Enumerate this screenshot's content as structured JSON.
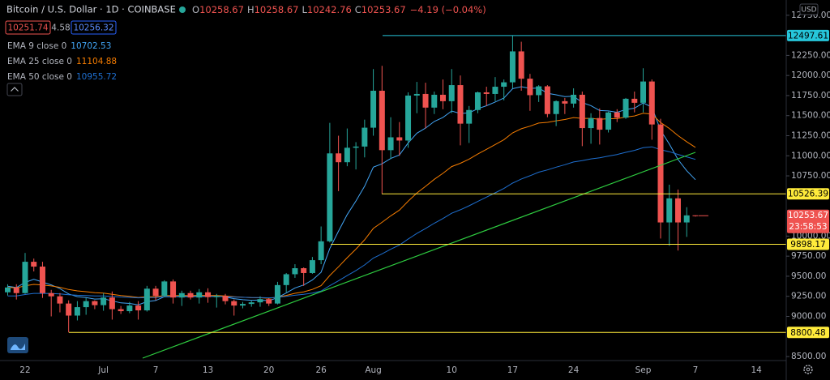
{
  "header": {
    "ohlc_labels": [
      "O",
      "H",
      "L",
      "C"
    ],
    "change": "−4.19 (−0.04%)",
    "bid": 10251.74,
    "spread": 4.58,
    "ask": 10256.32,
    "currency": "USD",
    "countdown": "23:58:53"
  },
  "chart_data": {
    "type": "candlestick",
    "title": "Bitcoin / U.S. Dollar · 1D · COINBASE",
    "categories": [
      null,
      null,
      "22",
      null,
      null,
      null,
      null,
      null,
      null,
      null,
      null,
      "Jul",
      null,
      null,
      null,
      null,
      null,
      "7",
      null,
      null,
      null,
      null,
      null,
      "13",
      null,
      null,
      null,
      null,
      null,
      null,
      "20",
      null,
      null,
      null,
      null,
      null,
      "26",
      null,
      null,
      null,
      null,
      null,
      "Aug",
      null,
      null,
      null,
      null,
      null,
      null,
      null,
      null,
      "10",
      null,
      null,
      null,
      null,
      null,
      null,
      "17",
      null,
      null,
      null,
      null,
      null,
      null,
      "24",
      null,
      null,
      null,
      null,
      null,
      null,
      null,
      "Sep",
      null,
      null,
      null,
      null,
      null,
      "7",
      null,
      null,
      null,
      null,
      null,
      null,
      "14"
    ],
    "open": [
      9300,
      9360,
      9290,
      9680,
      9620,
      9290,
      9250,
      9160,
      9010,
      9115,
      9190,
      9140,
      9235,
      9090,
      9065,
      9135,
      9075,
      9345,
      9255,
      9435,
      9235,
      9290,
      9235,
      9300,
      9240,
      9255,
      9190,
      9135,
      9155,
      9175,
      9215,
      9160,
      9390,
      9525,
      9600,
      9540,
      9700,
      9935,
      11030,
      10920,
      11100,
      11115,
      11350,
      11810,
      11070,
      11230,
      11190,
      11750,
      11770,
      11600,
      11760,
      11680,
      11880,
      11400,
      11570,
      11790,
      11770,
      11860,
      11915,
      12300,
      11960,
      11755,
      11865,
      11520,
      11680,
      11650,
      11760,
      11345,
      11470,
      11325,
      11540,
      11475,
      11710,
      11660,
      11925,
      11390,
      10170,
      10470,
      10170,
      10258.67,
      null,
      null,
      null,
      null,
      null,
      null,
      null
    ],
    "high": [
      9400,
      9400,
      9790,
      9720,
      9680,
      9330,
      9290,
      9200,
      9190,
      9230,
      9200,
      9290,
      9310,
      9130,
      9180,
      9190,
      9380,
      9380,
      9450,
      9460,
      9320,
      9320,
      9340,
      9350,
      9280,
      9280,
      9210,
      9180,
      9200,
      9250,
      9225,
      9430,
      9540,
      9650,
      9610,
      9740,
      10120,
      11410,
      11250,
      11340,
      11170,
      11450,
      12080,
      12120,
      11480,
      11420,
      11790,
      11920,
      11910,
      11800,
      11950,
      12080,
      12000,
      11620,
      11800,
      11860,
      11980,
      11950,
      12497.61,
      12420,
      12020,
      11880,
      11880,
      11690,
      11720,
      11840,
      11800,
      11530,
      11590,
      11550,
      11580,
      11720,
      11800,
      12090,
      11950,
      11460,
      10640,
      10580,
      10360,
      10258.67,
      null,
      null,
      null,
      null,
      null,
      null,
      null
    ],
    "low": [
      9260,
      9210,
      9280,
      9560,
      9230,
      9000,
      9050,
      8800.48,
      8950,
      9020,
      9090,
      9070,
      8960,
      9030,
      9040,
      8960,
      9060,
      9200,
      9240,
      9160,
      9130,
      9210,
      9160,
      9170,
      9110,
      9150,
      9010,
      9100,
      9120,
      9120,
      9130,
      9150,
      9300,
      9480,
      9380,
      9530,
      9650,
      9920,
      10560,
      10870,
      10830,
      10980,
      11250,
      10526.39,
      10960,
      11000,
      11100,
      11530,
      11340,
      11520,
      11580,
      11530,
      11130,
      11160,
      11530,
      11620,
      11680,
      11690,
      11840,
      11810,
      11560,
      11670,
      11480,
      11370,
      11520,
      11600,
      11120,
      11150,
      11140,
      11290,
      11420,
      11460,
      11540,
      11540,
      11200,
      9970,
      9880,
      9820,
      9990,
      10242.76,
      null,
      null,
      null,
      null,
      null,
      null,
      null
    ],
    "close": [
      9360,
      9290,
      9680,
      9620,
      9290,
      9250,
      9160,
      9010,
      9115,
      9190,
      9140,
      9235,
      9090,
      9065,
      9135,
      9075,
      9345,
      9255,
      9435,
      9235,
      9290,
      9235,
      9300,
      9240,
      9255,
      9190,
      9135,
      9155,
      9175,
      9215,
      9160,
      9390,
      9525,
      9600,
      9540,
      9700,
      9935,
      11030,
      10920,
      11100,
      11115,
      11350,
      11810,
      11070,
      11230,
      11190,
      11750,
      11770,
      11600,
      11760,
      11680,
      11880,
      11400,
      11570,
      11790,
      11770,
      11860,
      11915,
      12300,
      11960,
      11755,
      11865,
      11520,
      11680,
      11650,
      11760,
      11345,
      11470,
      11325,
      11540,
      11475,
      11710,
      11660,
      11925,
      11390,
      10170,
      10470,
      10170,
      10257.86,
      10253.67,
      null,
      null,
      null,
      null,
      null,
      null,
      null
    ],
    "up_color": "#26a69a",
    "down_color": "#ef5350",
    "series": [
      {
        "name": "EMA 9 close 0",
        "color": "#42a5f5",
        "values": [
          9376,
          9359,
          9423,
          9462,
          9428,
          9392,
          9346,
          9279,
          9246,
          9235,
          9216,
          9220,
          9194,
          9168,
          9161,
          9144,
          9184,
          9198,
          9245,
          9243,
          9252,
          9249,
          9259,
          9255,
          9255,
          9242,
          9221,
          9208,
          9201,
          9204,
          9195,
          9234,
          9292,
          9354,
          9391,
          9453,
          9549,
          9845,
          10060,
          10268,
          10437,
          10620,
          10858,
          10900,
          10966,
          11011,
          11159,
          11281,
          11345,
          11428,
          11478,
          11558,
          11526,
          11535,
          11586,
          11623,
          11670,
          11719,
          11835,
          11860,
          11839,
          11844,
          11779,
          11759,
          11737,
          11742,
          11663,
          11624,
          11564,
          11559,
          11542,
          11576,
          11593,
          11659,
          11605,
          11318,
          11148,
          10953,
          10814,
          10702.53,
          null,
          null,
          null,
          null,
          null,
          null,
          null
        ]
      },
      {
        "name": "EMA 25 close 0",
        "color": "#f57c00",
        "values": [
          9360,
          9355,
          9380,
          9398,
          9390,
          9379,
          9362,
          9335,
          9318,
          9308,
          9295,
          9290,
          9275,
          9259,
          9249,
          9236,
          9244,
          9245,
          9260,
          9258,
          9260,
          9258,
          9261,
          9259,
          9259,
          9254,
          9245,
          9238,
          9233,
          9232,
          9226,
          9239,
          9261,
          9287,
          9306,
          9336,
          9382,
          9509,
          9617,
          9731,
          9837,
          9953,
          10096,
          10171,
          10252,
          10324,
          10434,
          10537,
          10619,
          10707,
          10782,
          10866,
          10907,
          10958,
          11022,
          11080,
          11140,
          11200,
          11285,
          11337,
          11369,
          11407,
          11416,
          11436,
          11452,
          11476,
          11466,
          11466,
          11455,
          11462,
          11463,
          11482,
          11496,
          11529,
          11518,
          11414,
          11341,
          11251,
          11175,
          11104.88,
          null,
          null,
          null,
          null,
          null,
          null,
          null
        ]
      },
      {
        "name": "EMA 50 close 0",
        "color": "#1e6fd0",
        "values": [
          9254,
          9255,
          9272,
          9286,
          9286,
          9285,
          9280,
          9269,
          9263,
          9260,
          9255,
          9254,
          9248,
          9241,
          9237,
          9231,
          9235,
          9236,
          9244,
          9244,
          9246,
          9245,
          9247,
          9247,
          9247,
          9245,
          9241,
          9238,
          9235,
          9234,
          9231,
          9237,
          9249,
          9263,
          9274,
          9290,
          9315,
          9383,
          9443,
          9508,
          9571,
          9641,
          9726,
          9779,
          9836,
          9889,
          9962,
          10033,
          10094,
          10160,
          10219,
          10284,
          10328,
          10377,
          10432,
          10485,
          10539,
          10593,
          10660,
          10711,
          10752,
          10796,
          10824,
          10858,
          10889,
          10923,
          10940,
          10961,
          10975,
          10997,
          11016,
          11043,
          11067,
          11101,
          11112,
          11075,
          11051,
          11017,
          10987,
          10955.72,
          null,
          null,
          null,
          null,
          null,
          null,
          null
        ]
      }
    ],
    "levels": [
      12497.61,
      10526.39,
      9898.17,
      8800.48
    ],
    "level_colors": [
      "#26c6da",
      "#ffeb3b",
      "#ffeb3b",
      "#ffeb3b"
    ],
    "ylim": [
      8450,
      12940
    ],
    "yticks": [
      {
        "value": 12750,
        "label": "12750.00"
      },
      {
        "value": 12250,
        "label": "12250.00"
      },
      {
        "value": 12000,
        "label": "12000.00"
      },
      {
        "value": 11750,
        "label": "11750.00"
      },
      {
        "value": 11500,
        "label": "11500.00"
      },
      {
        "value": 11250,
        "label": "11250.00"
      },
      {
        "value": 11000,
        "label": "11000.00"
      },
      {
        "value": 10750,
        "label": "10750.00"
      },
      {
        "value": 10000,
        "label": "10000.00"
      },
      {
        "value": 9750,
        "label": "9750.00"
      },
      {
        "value": 9500,
        "label": "9500.00"
      },
      {
        "value": 9250,
        "label": "9250.00"
      },
      {
        "value": 9000,
        "label": "9000.00"
      },
      {
        "value": 8500,
        "label": "8500.00"
      }
    ],
    "grid": false
  }
}
